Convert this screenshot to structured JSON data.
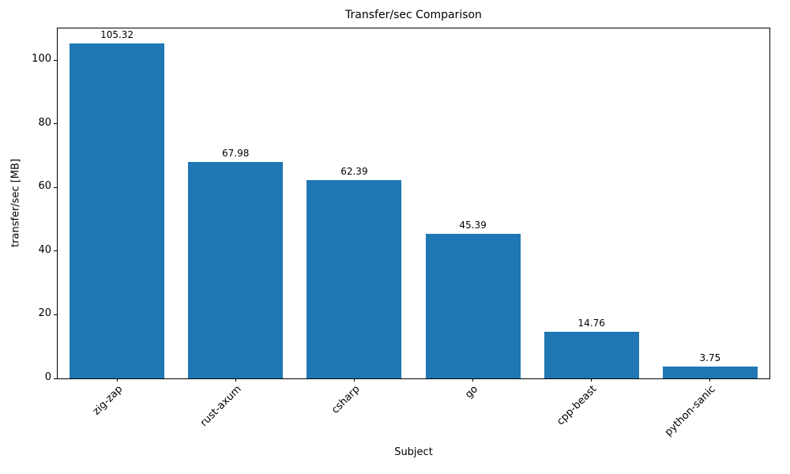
{
  "chart_data": {
    "type": "bar",
    "title": "Transfer/sec Comparison",
    "xlabel": "Subject",
    "ylabel": "transfer/sec [MB]",
    "categories": [
      "zig-zap",
      "rust-axum",
      "csharp",
      "go",
      "cpp-beast",
      "python-sanic"
    ],
    "values": [
      105.32,
      67.98,
      62.39,
      45.39,
      14.76,
      3.75
    ],
    "value_labels": [
      "105.32",
      "67.98",
      "62.39",
      "45.39",
      "14.76",
      "3.75"
    ],
    "yticks": [
      0,
      20,
      40,
      60,
      80,
      100
    ],
    "ylim": [
      0,
      110
    ],
    "bar_color": "#1f77b4",
    "grid": false,
    "legend_position": "none",
    "bar_width_fraction": 0.8
  }
}
